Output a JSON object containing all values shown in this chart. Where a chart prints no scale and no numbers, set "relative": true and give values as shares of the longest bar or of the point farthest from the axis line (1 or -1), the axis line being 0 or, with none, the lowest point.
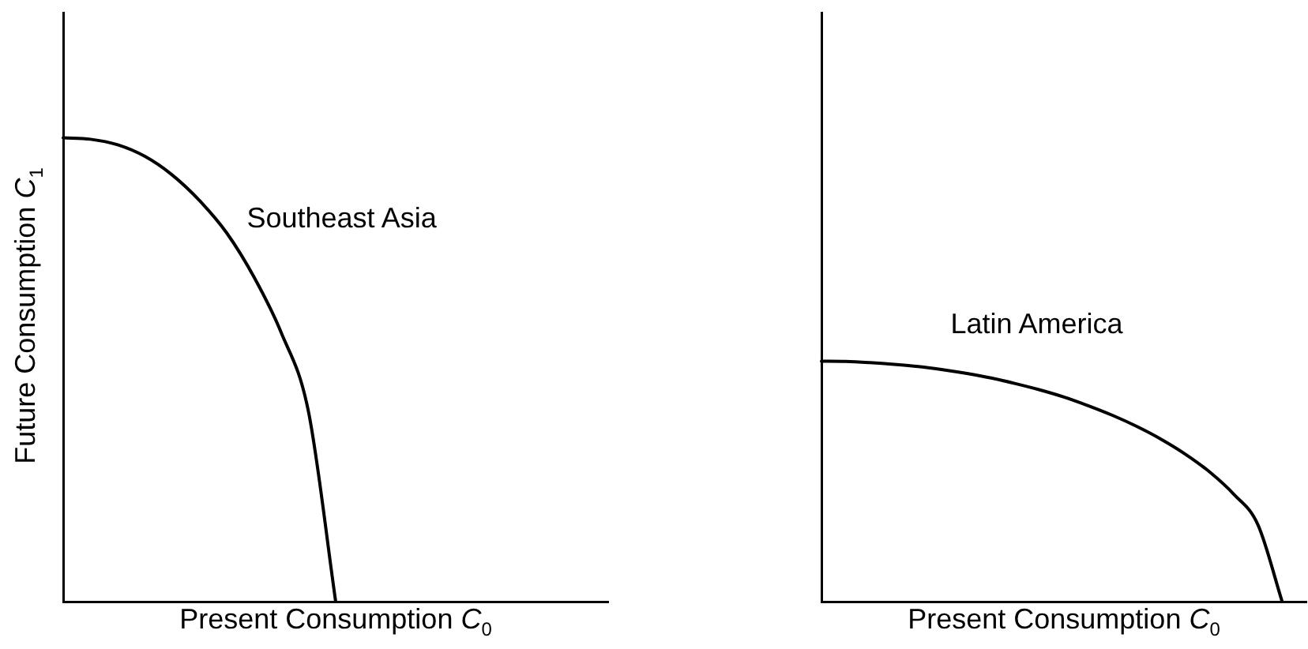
{
  "chart_data": [
    {
      "type": "line",
      "relative": true,
      "ylabel": "Future Consumption C$_{1}$",
      "xlabel": "Present Consumption C$_{0}$",
      "tick_labels": false,
      "grid": false,
      "legend": false,
      "marker": "none",
      "line_style": "solid",
      "categories": [
        null,
        null,
        null,
        null,
        null,
        null,
        null,
        null,
        null,
        null,
        null,
        null,
        null,
        null,
        null,
        null,
        null,
        null,
        null,
        null,
        null
      ],
      "series": [
        {
          "name": "Southeast Asia",
          "color": "#000000",
          "values": [
            1,
            0.997,
            0.985,
            0.96,
            0.92,
            0.865,
            0.795,
            0.7,
            0.58,
            0.41,
            0,
            null,
            null,
            null,
            null,
            null,
            null,
            null,
            null,
            null,
            null
          ]
        }
      ]
    },
    {
      "type": "line",
      "relative": true,
      "xlabel": "Present Consumption C$_{0}$",
      "tick_labels": false,
      "grid": false,
      "legend": false,
      "marker": "none",
      "line_style": "solid",
      "categories": [
        null,
        null,
        null,
        null,
        null,
        null,
        null,
        null,
        null,
        null,
        null,
        null,
        null,
        null,
        null,
        null,
        null,
        null,
        null,
        null,
        null
      ],
      "series": [
        {
          "name": "Latin America",
          "color": "#000000",
          "values": [
            1,
            0.999,
            0.994,
            0.987,
            0.978,
            0.965,
            0.949,
            0.93,
            0.907,
            0.881,
            0.851,
            0.815,
            0.775,
            0.729,
            0.676,
            0.614,
            0.54,
            0.447,
            0.32,
            0,
            null
          ]
        }
      ]
    }
  ]
}
